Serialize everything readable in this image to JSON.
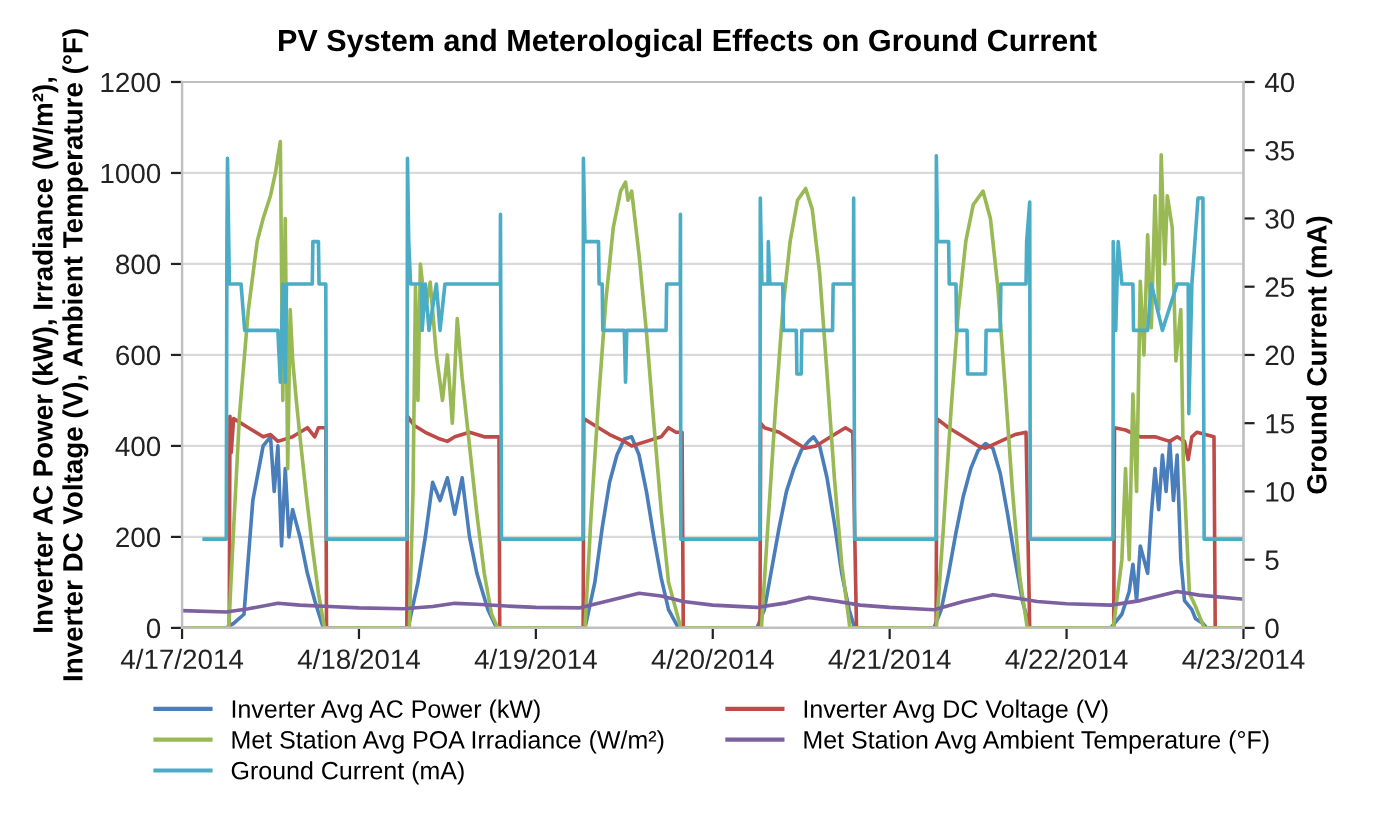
{
  "chart_data": {
    "type": "line",
    "title": "PV System and Meterological Effects on Ground Current",
    "ylabel": "Inverter AC Power (kW), Irradiance (W/m²),\nInverter DC Voltage (V), Ambient Temperature (°F)",
    "y2label": "Ground Current (mA)",
    "xlim": [
      "2014-04-17",
      "2014-04-23"
    ],
    "xticks": [
      {
        "value": "2014-04-17",
        "label": "4/17/2014"
      },
      {
        "value": "2014-04-18",
        "label": "4/18/2014"
      },
      {
        "value": "2014-04-19",
        "label": "4/19/2014"
      },
      {
        "value": "2014-04-20",
        "label": "4/20/2014"
      },
      {
        "value": "2014-04-21",
        "label": "4/21/2014"
      },
      {
        "value": "2014-04-22",
        "label": "4/22/2014"
      },
      {
        "value": "2014-04-23",
        "label": "4/23/2014"
      }
    ],
    "ylim": [
      0,
      1200
    ],
    "yticks": [
      0,
      200,
      400,
      600,
      800,
      1000,
      1200
    ],
    "y2lim": [
      0,
      40
    ],
    "y2ticks": [
      0,
      5,
      10,
      15,
      20,
      25,
      30,
      35,
      40
    ],
    "grid": "y",
    "legend": "bottom",
    "marker": "none",
    "line_style": "solid",
    "series": [
      {
        "name": "Inverter Avg AC Power (kW)",
        "color": "#4a7ebb",
        "x": [
          "2014-04-17T00:00",
          "2014-04-17T06:00",
          "2014-04-17T07:00",
          "2014-04-17T08:24",
          "2014-04-17T09:36",
          "2014-04-17T11:00",
          "2014-04-17T12:00",
          "2014-04-17T12:30",
          "2014-04-17T13:00",
          "2014-04-17T13:30",
          "2014-04-17T14:00",
          "2014-04-17T14:30",
          "2014-04-17T15:00",
          "2014-04-17T16:00",
          "2014-04-17T17:00",
          "2014-04-17T18:00",
          "2014-04-17T19:10",
          "2014-04-18T06:40",
          "2014-04-18T08:00",
          "2014-04-18T09:00",
          "2014-04-18T10:00",
          "2014-04-18T11:00",
          "2014-04-18T12:00",
          "2014-04-18T13:00",
          "2014-04-18T14:00",
          "2014-04-18T15:00",
          "2014-04-18T16:00",
          "2014-04-18T17:30",
          "2014-04-18T18:40",
          "2014-04-19T06:40",
          "2014-04-19T08:00",
          "2014-04-19T09:00",
          "2014-04-19T10:00",
          "2014-04-19T11:00",
          "2014-04-19T12:00",
          "2014-04-19T13:00",
          "2014-04-19T14:00",
          "2014-04-19T15:00",
          "2014-04-19T16:00",
          "2014-04-19T17:00",
          "2014-04-19T18:00",
          "2014-04-19T19:20",
          "2014-04-20T06:00",
          "2014-04-20T07:00",
          "2014-04-20T08:00",
          "2014-04-20T09:00",
          "2014-04-20T10:00",
          "2014-04-20T11:00",
          "2014-04-20T12:00",
          "2014-04-20T13:00",
          "2014-04-20T13:40",
          "2014-04-20T14:30",
          "2014-04-20T15:30",
          "2014-04-20T16:30",
          "2014-04-20T17:30",
          "2014-04-20T18:30",
          "2014-04-20T19:15",
          "2014-04-21T06:00",
          "2014-04-21T07:00",
          "2014-04-21T08:00",
          "2014-04-21T09:00",
          "2014-04-21T10:00",
          "2014-04-21T11:00",
          "2014-04-21T12:00",
          "2014-04-21T13:00",
          "2014-04-21T14:00",
          "2014-04-21T15:00",
          "2014-04-21T16:00",
          "2014-04-21T17:00",
          "2014-04-21T18:00",
          "2014-04-21T19:00",
          "2014-04-22T06:00",
          "2014-04-22T07:30",
          "2014-04-22T08:30",
          "2014-04-22T09:00",
          "2014-04-22T09:30",
          "2014-04-22T10:00",
          "2014-04-22T11:00",
          "2014-04-22T11:30",
          "2014-04-22T12:00",
          "2014-04-22T12:30",
          "2014-04-22T13:00",
          "2014-04-22T13:30",
          "2014-04-22T14:00",
          "2014-04-22T14:30",
          "2014-04-22T15:00",
          "2014-04-22T15:30",
          "2014-04-22T16:00",
          "2014-04-22T17:00",
          "2014-04-22T17:30",
          "2014-04-22T18:30",
          "2014-04-22T19:00",
          "2014-04-23T00:00"
        ],
        "values": [
          0,
          0,
          10,
          30,
          280,
          400,
          420,
          300,
          400,
          180,
          350,
          200,
          260,
          200,
          120,
          60,
          0,
          0,
          100,
          200,
          320,
          280,
          330,
          250,
          330,
          200,
          120,
          40,
          0,
          0,
          100,
          220,
          320,
          380,
          415,
          420,
          380,
          300,
          200,
          110,
          40,
          0,
          0,
          40,
          130,
          220,
          300,
          350,
          390,
          410,
          420,
          400,
          330,
          230,
          120,
          40,
          0,
          0,
          40,
          120,
          210,
          290,
          350,
          390,
          405,
          395,
          340,
          250,
          150,
          60,
          0,
          0,
          30,
          80,
          140,
          60,
          180,
          120,
          250,
          350,
          260,
          380,
          300,
          410,
          280,
          380,
          150,
          60,
          40,
          20,
          10,
          0,
          0
        ]
      },
      {
        "name": "Inverter Avg DC Voltage (V)",
        "color": "#be4b48",
        "x": [
          "2014-04-17T00:00",
          "2014-04-17T06:24",
          "2014-04-17T06:30",
          "2014-04-17T06:40",
          "2014-04-17T07:00",
          "2014-04-17T09:00",
          "2014-04-17T11:00",
          "2014-04-17T12:00",
          "2014-04-17T13:00",
          "2014-04-17T15:00",
          "2014-04-17T17:00",
          "2014-04-17T18:00",
          "2014-04-17T18:30",
          "2014-04-17T19:30",
          "2014-04-17T19:36",
          "2014-04-18T06:30",
          "2014-04-18T06:35",
          "2014-04-18T07:30",
          "2014-04-18T09:00",
          "2014-04-18T11:00",
          "2014-04-18T12:00",
          "2014-04-18T13:00",
          "2014-04-18T15:00",
          "2014-04-18T17:00",
          "2014-04-18T19:00",
          "2014-04-18T19:06",
          "2014-04-19T06:25",
          "2014-04-19T06:30",
          "2014-04-19T08:00",
          "2014-04-19T10:00",
          "2014-04-19T12:00",
          "2014-04-19T13:00",
          "2014-04-19T15:00",
          "2014-04-19T17:00",
          "2014-04-19T18:00",
          "2014-04-19T19:00",
          "2014-04-19T19:50",
          "2014-04-19T20:00",
          "2014-04-20T06:24",
          "2014-04-20T06:30",
          "2014-04-20T07:00",
          "2014-04-20T09:00",
          "2014-04-20T11:00",
          "2014-04-20T12:30",
          "2014-04-20T14:00",
          "2014-04-20T16:00",
          "2014-04-20T18:00",
          "2014-04-20T19:00",
          "2014-04-20T19:30",
          "2014-04-21T06:18",
          "2014-04-21T06:24",
          "2014-04-21T08:00",
          "2014-04-21T10:00",
          "2014-04-21T12:00",
          "2014-04-21T13:00",
          "2014-04-21T15:00",
          "2014-04-21T17:00",
          "2014-04-21T18:30",
          "2014-04-21T19:00",
          "2014-04-22T06:24",
          "2014-04-22T06:30",
          "2014-04-22T08:00",
          "2014-04-22T10:00",
          "2014-04-22T12:00",
          "2014-04-22T14:00",
          "2014-04-22T15:00",
          "2014-04-22T16:00",
          "2014-04-22T16:30",
          "2014-04-22T17:00",
          "2014-04-22T17:40",
          "2014-04-22T20:00",
          "2014-04-22T20:10",
          "2014-04-23T00:00"
        ],
        "values": [
          0,
          0,
          465,
          385,
          460,
          440,
          420,
          425,
          410,
          420,
          440,
          420,
          440,
          440,
          0,
          0,
          465,
          445,
          430,
          415,
          410,
          420,
          430,
          420,
          420,
          0,
          0,
          460,
          445,
          425,
          410,
          400,
          410,
          420,
          440,
          430,
          430,
          0,
          0,
          450,
          440,
          430,
          410,
          395,
          400,
          420,
          440,
          430,
          0,
          0,
          460,
          440,
          420,
          400,
          395,
          410,
          425,
          430,
          0,
          0,
          440,
          435,
          420,
          420,
          410,
          420,
          410,
          370,
          420,
          430,
          420,
          0,
          0
        ]
      },
      {
        "name": "Met Station Avg POA Irradiance (W/m²)",
        "color": "#98b954",
        "x": [
          "2014-04-17T00:00",
          "2014-04-17T06:20",
          "2014-04-17T07:00",
          "2014-04-17T07:48",
          "2014-04-17T09:00",
          "2014-04-17T10:12",
          "2014-04-17T11:00",
          "2014-04-17T12:00",
          "2014-04-17T12:40",
          "2014-04-17T13:20",
          "2014-04-17T13:40",
          "2014-04-17T14:00",
          "2014-04-17T14:20",
          "2014-04-17T14:40",
          "2014-04-17T15:00",
          "2014-04-17T15:30",
          "2014-04-17T16:00",
          "2014-04-17T16:50",
          "2014-04-17T17:40",
          "2014-04-17T18:30",
          "2014-04-17T19:20",
          "2014-04-18T06:50",
          "2014-04-18T07:20",
          "2014-04-18T07:40",
          "2014-04-18T08:00",
          "2014-04-18T08:20",
          "2014-04-18T09:00",
          "2014-04-18T09:40",
          "2014-04-18T10:30",
          "2014-04-18T11:20",
          "2014-04-18T12:00",
          "2014-04-18T12:40",
          "2014-04-18T13:20",
          "2014-04-18T14:00",
          "2014-04-18T15:00",
          "2014-04-18T16:00",
          "2014-04-18T17:00",
          "2014-04-18T18:00",
          "2014-04-18T18:50",
          "2014-04-19T06:40",
          "2014-04-19T07:30",
          "2014-04-19T08:30",
          "2014-04-19T09:30",
          "2014-04-19T10:30",
          "2014-04-19T11:30",
          "2014-04-19T12:10",
          "2014-04-19T12:30",
          "2014-04-19T13:00",
          "2014-04-19T14:00",
          "2014-04-19T15:00",
          "2014-04-19T16:00",
          "2014-04-19T17:00",
          "2014-04-19T18:00",
          "2014-04-19T19:40",
          "2014-04-20T06:36",
          "2014-04-20T07:30",
          "2014-04-20T08:30",
          "2014-04-20T09:30",
          "2014-04-20T10:30",
          "2014-04-20T11:30",
          "2014-04-20T12:36",
          "2014-04-20T13:30",
          "2014-04-20T14:30",
          "2014-04-20T15:30",
          "2014-04-20T16:30",
          "2014-04-20T17:30",
          "2014-04-20T18:36",
          "2014-04-21T06:20",
          "2014-04-21T07:20",
          "2014-04-21T08:20",
          "2014-04-21T09:20",
          "2014-04-21T10:20",
          "2014-04-21T11:20",
          "2014-04-21T12:40",
          "2014-04-21T13:40",
          "2014-04-21T14:40",
          "2014-04-21T15:40",
          "2014-04-21T16:40",
          "2014-04-21T17:40",
          "2014-04-21T18:40",
          "2014-04-22T06:20",
          "2014-04-22T07:30",
          "2014-04-22T08:00",
          "2014-04-22T08:30",
          "2014-04-22T09:00",
          "2014-04-22T09:30",
          "2014-04-22T10:00",
          "2014-04-22T10:30",
          "2014-04-22T11:00",
          "2014-04-22T11:30",
          "2014-04-22T12:00",
          "2014-04-22T12:30",
          "2014-04-22T12:50",
          "2014-04-22T13:20",
          "2014-04-22T13:40",
          "2014-04-22T14:20",
          "2014-04-22T14:50",
          "2014-04-22T15:30",
          "2014-04-22T15:50",
          "2014-04-22T16:40",
          "2014-04-22T17:30",
          "2014-04-22T18:40",
          "2014-04-23T00:00"
        ],
        "values": [
          0,
          0,
          220,
          470,
          700,
          850,
          900,
          950,
          1000,
          1069,
          500,
          900,
          350,
          700,
          590,
          500,
          420,
          295,
          180,
          76,
          0,
          0,
          300,
          750,
          500,
          800,
          700,
          760,
          600,
          500,
          600,
          450,
          680,
          550,
          400,
          250,
          120,
          30,
          0,
          0,
          250,
          500,
          720,
          880,
          960,
          980,
          940,
          960,
          820,
          650,
          450,
          260,
          100,
          0,
          0,
          230,
          480,
          700,
          850,
          940,
          966,
          920,
          780,
          560,
          330,
          140,
          0,
          0,
          230,
          480,
          700,
          850,
          930,
          960,
          900,
          750,
          530,
          300,
          110,
          0,
          0,
          150,
          350,
          150,
          514,
          300,
          762,
          600,
          864,
          660,
          950,
          700,
          1040,
          800,
          950,
          880,
          587,
          700,
          368,
          76,
          47,
          0,
          0
        ]
      },
      {
        "name": "Met Station Avg Ambient Temperature (°F)",
        "color": "#7d60a0",
        "x": [
          "2014-04-17T00:00",
          "2014-04-17T06:00",
          "2014-04-17T09:00",
          "2014-04-17T13:00",
          "2014-04-17T16:00",
          "2014-04-17T20:00",
          "2014-04-18T00:00",
          "2014-04-18T06:00",
          "2014-04-18T10:00",
          "2014-04-18T13:00",
          "2014-04-18T16:00",
          "2014-04-18T20:00",
          "2014-04-19T00:00",
          "2014-04-19T06:00",
          "2014-04-19T10:00",
          "2014-04-19T14:00",
          "2014-04-19T17:00",
          "2014-04-19T20:00",
          "2014-04-20T00:00",
          "2014-04-20T06:00",
          "2014-04-20T10:00",
          "2014-04-20T13:00",
          "2014-04-20T17:00",
          "2014-04-20T20:00",
          "2014-04-21T00:00",
          "2014-04-21T06:00",
          "2014-04-21T10:00",
          "2014-04-21T14:00",
          "2014-04-21T17:00",
          "2014-04-21T20:00",
          "2014-04-22T00:00",
          "2014-04-22T06:00",
          "2014-04-22T10:00",
          "2014-04-22T15:00",
          "2014-04-22T18:00",
          "2014-04-23T00:00"
        ],
        "values": [
          38,
          35,
          42,
          54,
          50,
          47,
          44,
          42,
          47,
          54,
          52,
          48,
          45,
          44,
          60,
          76,
          70,
          58,
          50,
          45,
          55,
          67,
          58,
          50,
          45,
          40,
          58,
          73,
          66,
          58,
          53,
          50,
          60,
          80,
          72,
          63
        ]
      },
      {
        "name": "Ground Current (mA)",
        "color": "#4bacc6",
        "axis": "y2",
        "x": [
          "2014-04-17T03:00",
          "2014-04-17T06:00",
          "2014-04-17T06:05",
          "2014-04-17T06:10",
          "2014-04-17T06:20",
          "2014-04-17T06:25",
          "2014-04-17T08:00",
          "2014-04-17T08:30",
          "2014-04-17T13:00",
          "2014-04-17T13:20",
          "2014-04-17T13:40",
          "2014-04-17T14:00",
          "2014-04-17T14:10",
          "2014-04-17T17:40",
          "2014-04-17T17:45",
          "2014-04-17T18:30",
          "2014-04-17T18:35",
          "2014-04-17T19:30",
          "2014-04-17T19:35",
          "2014-04-18T06:30",
          "2014-04-18T06:35",
          "2014-04-18T06:45",
          "2014-04-18T07:00",
          "2014-04-18T08:30",
          "2014-04-18T08:35",
          "2014-04-18T09:00",
          "2014-04-18T09:30",
          "2014-04-18T10:30",
          "2014-04-18T11:00",
          "2014-04-18T11:40",
          "2014-04-18T19:10",
          "2014-04-18T19:12",
          "2014-04-18T19:20",
          "2014-04-19T06:24",
          "2014-04-19T06:27",
          "2014-04-19T06:40",
          "2014-04-19T08:30",
          "2014-04-19T08:35",
          "2014-04-19T09:00",
          "2014-04-19T09:05",
          "2014-04-19T12:00",
          "2014-04-19T12:10",
          "2014-04-19T12:20",
          "2014-04-19T17:40",
          "2014-04-19T17:45",
          "2014-04-19T19:35",
          "2014-04-19T19:37",
          "2014-04-19T19:40",
          "2014-04-20T06:24",
          "2014-04-20T06:27",
          "2014-04-20T06:40",
          "2014-04-20T07:30",
          "2014-04-20T07:32",
          "2014-04-20T07:45",
          "2014-04-20T09:30",
          "2014-04-20T09:35",
          "2014-04-20T11:20",
          "2014-04-20T11:25",
          "2014-04-20T12:00",
          "2014-04-20T12:05",
          "2014-04-20T16:15",
          "2014-04-20T16:20",
          "2014-04-20T19:05",
          "2014-04-20T19:07",
          "2014-04-20T19:15",
          "2014-04-21T06:18",
          "2014-04-21T06:20",
          "2014-04-21T06:30",
          "2014-04-21T08:00",
          "2014-04-21T08:05",
          "2014-04-21T09:00",
          "2014-04-21T09:05",
          "2014-04-21T10:30",
          "2014-04-21T10:35",
          "2014-04-21T13:00",
          "2014-04-21T13:05",
          "2014-04-21T15:00",
          "2014-04-21T15:05",
          "2014-04-21T18:30",
          "2014-04-21T18:35",
          "2014-04-21T19:00",
          "2014-04-21T19:05",
          "2014-04-22T06:18",
          "2014-04-22T06:20",
          "2014-04-22T06:40",
          "2014-04-22T07:00",
          "2014-04-22T07:30",
          "2014-04-22T09:00",
          "2014-04-22T09:05",
          "2014-04-22T11:00",
          "2014-04-22T11:30",
          "2014-04-22T13:00",
          "2014-04-22T15:00",
          "2014-04-22T16:30",
          "2014-04-22T16:35",
          "2014-04-22T17:00",
          "2014-04-22T17:50",
          "2014-04-22T18:30",
          "2014-04-22T18:40",
          "2014-04-23T00:00"
        ],
        "values": [
          6.5,
          6.5,
          28.3,
          34.4,
          28.3,
          25.2,
          25.2,
          21.8,
          21.8,
          18,
          25.2,
          18,
          25.2,
          25.2,
          28.3,
          28.3,
          25.2,
          25.2,
          6.5,
          6.5,
          34.4,
          28.3,
          25.2,
          25.2,
          21.8,
          25.2,
          21.8,
          25.2,
          21.8,
          25.2,
          25.2,
          30.3,
          6.5,
          6.5,
          34.4,
          28.3,
          28.3,
          25.2,
          25.2,
          21.8,
          21.8,
          18,
          21.8,
          21.8,
          25.2,
          25.2,
          30.3,
          6.5,
          6.5,
          31.5,
          25.2,
          25.2,
          28.3,
          25.2,
          25.2,
          21.8,
          21.8,
          18.6,
          18.6,
          21.8,
          21.8,
          25.2,
          25.2,
          31.5,
          6.5,
          6.5,
          34.6,
          28.3,
          28.3,
          25.2,
          25.2,
          21.8,
          21.8,
          18.6,
          18.6,
          21.8,
          21.8,
          25.2,
          25.2,
          28.3,
          31.2,
          6.5,
          6.5,
          28.3,
          21.8,
          28.3,
          25.2,
          25.2,
          21.8,
          21.8,
          25.2,
          21.8,
          25.2,
          25.2,
          15.7,
          25.2,
          31.5,
          31.5,
          6.5,
          6.5
        ]
      }
    ]
  }
}
